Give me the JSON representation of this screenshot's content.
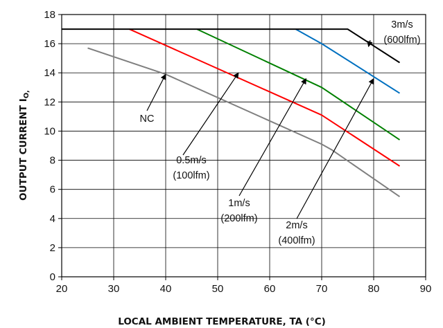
{
  "chart_data": {
    "type": "line",
    "xlabel": "LOCAL AMBIENT TEMPERATURE, TA (°C)",
    "ylabel_main": "OUTPUT CURRENT I",
    "ylabel_sub": "O,",
    "xlim": [
      20,
      90
    ],
    "ylim": [
      0,
      18
    ],
    "xticks": [
      20,
      30,
      40,
      50,
      60,
      70,
      80,
      90
    ],
    "yticks": [
      0,
      2,
      4,
      6,
      8,
      10,
      12,
      14,
      16,
      18
    ],
    "grid": true,
    "series": [
      {
        "name": "NC",
        "color": "#7f7f7f",
        "x": [
          25,
          40,
          70,
          72,
          85
        ],
        "y": [
          15.7,
          13.9,
          9.1,
          8.7,
          5.5
        ]
      },
      {
        "name": "0.5m/s (100lfm)",
        "color": "#ff0000",
        "x": [
          33,
          70,
          85
        ],
        "y": [
          17,
          11.1,
          7.6
        ]
      },
      {
        "name": "1m/s (200lfm)",
        "color": "#008000",
        "x": [
          46,
          70,
          85
        ],
        "y": [
          17,
          13,
          9.4
        ]
      },
      {
        "name": "2m/s (400lfm)",
        "color": "#0070c0",
        "x": [
          65,
          70,
          85
        ],
        "y": [
          17,
          16,
          12.6
        ]
      },
      {
        "name": "3m/s (600lfm)",
        "color": "#000000",
        "x": [
          20,
          75,
          85
        ],
        "y": [
          17,
          17,
          14.7
        ]
      }
    ],
    "annotations": [
      {
        "lines": [
          "NC"
        ],
        "arrow_to": [
          40,
          13.9
        ]
      },
      {
        "lines": [
          "0.5m/s",
          "(100lfm)"
        ],
        "arrow_to": [
          54,
          14.0
        ]
      },
      {
        "lines": [
          "1m/s",
          "(200lfm)"
        ],
        "arrow_to": [
          67,
          13.6
        ]
      },
      {
        "lines": [
          "2m/s",
          "(400lfm)"
        ],
        "arrow_to": [
          80,
          13.6
        ]
      },
      {
        "lines": [
          "3m/s",
          "(600lfm)"
        ],
        "arrow_to": [
          79,
          15.8
        ]
      }
    ]
  }
}
